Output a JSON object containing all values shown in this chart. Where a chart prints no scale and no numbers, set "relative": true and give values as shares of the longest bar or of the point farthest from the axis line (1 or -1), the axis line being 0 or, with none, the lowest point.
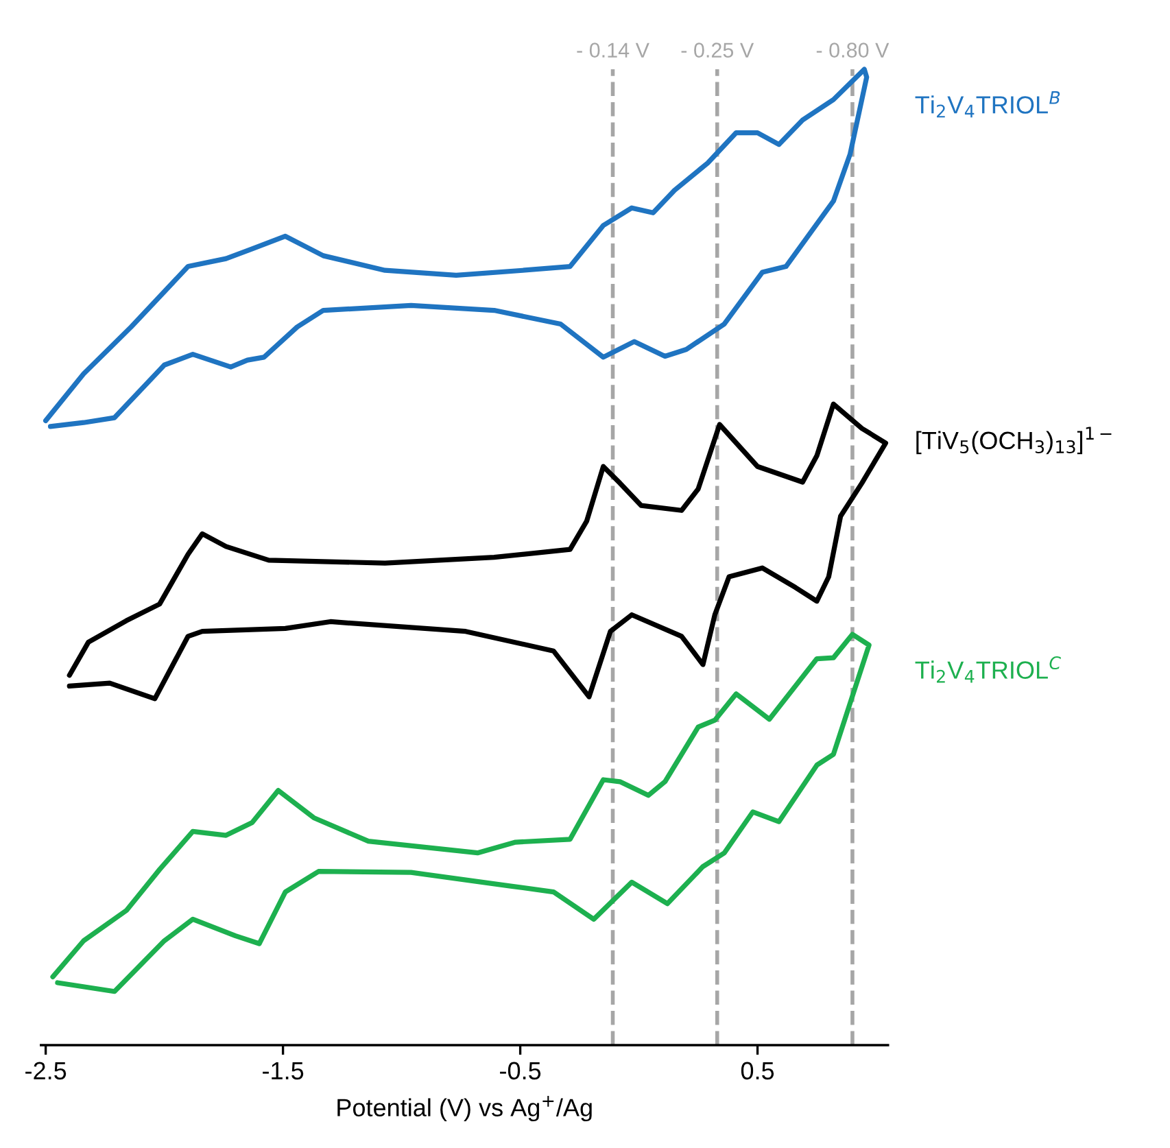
{
  "chart_data": {
    "type": "line",
    "relative": true,
    "xlabel": "Potential (V) vs Ag$^{+}$/Ag",
    "xlim": [
      -2.52,
      1.05
    ],
    "xticks": [
      -2.5,
      -1.5,
      -0.5,
      0.5
    ],
    "grid": false,
    "legend": false,
    "marker": "none",
    "line_style": "solid",
    "series": [
      {
        "name": "Ti$_{2}$V$_{4}$TRIOL$^{B}$",
        "color": "#1f74c1",
        "x": [
          -2.5,
          -2.34,
          -2.14,
          -1.9,
          -1.74,
          -1.63,
          -1.49,
          -1.33,
          -1.07,
          -0.77,
          -0.49,
          -0.29,
          -0.15,
          -0.03,
          0.06,
          0.15,
          0.29,
          0.41,
          0.5,
          0.59,
          0.69,
          0.82,
          0.95,
          0.96,
          0.89,
          0.82,
          0.62,
          0.52,
          0.36,
          0.2,
          0.11,
          -0.02,
          -0.15,
          -0.33,
          -0.61,
          -0.96,
          -1.33,
          -1.44,
          -1.58,
          -1.65,
          -1.72,
          -1.88,
          -2.0,
          -2.21,
          -2.34,
          -2.48
        ],
        "values": [
          0.64,
          0.688,
          0.736,
          0.798,
          0.806,
          0.816,
          0.829,
          0.809,
          0.794,
          0.789,
          0.794,
          0.798,
          0.84,
          0.858,
          0.853,
          0.876,
          0.904,
          0.935,
          0.935,
          0.923,
          0.948,
          0.969,
          1.0,
          0.992,
          0.913,
          0.865,
          0.798,
          0.792,
          0.739,
          0.713,
          0.706,
          0.721,
          0.705,
          0.739,
          0.753,
          0.758,
          0.753,
          0.736,
          0.705,
          0.702,
          0.695,
          0.708,
          0.697,
          0.643,
          0.638,
          0.634
        ]
      },
      {
        "name": "[TiV$_{5}$(OCH$_{3}$)$_{13}$]$^{1−}$",
        "color": "#000000",
        "x": [
          -2.4,
          -2.32,
          -2.16,
          -2.02,
          -1.9,
          -1.84,
          -1.74,
          -1.56,
          -1.07,
          -0.61,
          -0.29,
          -0.22,
          -0.15,
          -0.08,
          0.01,
          0.18,
          0.25,
          0.34,
          0.5,
          0.69,
          0.75,
          0.82,
          0.94,
          1.04,
          0.94,
          0.85,
          0.8,
          0.75,
          0.66,
          0.52,
          0.38,
          0.32,
          0.27,
          0.18,
          -0.03,
          -0.12,
          -0.21,
          -0.36,
          -0.73,
          -1.3,
          -1.49,
          -1.84,
          -1.9,
          -2.04,
          -2.23,
          -2.4
        ],
        "values": [
          0.379,
          0.413,
          0.435,
          0.452,
          0.503,
          0.524,
          0.511,
          0.497,
          0.494,
          0.5,
          0.508,
          0.537,
          0.593,
          0.576,
          0.553,
          0.548,
          0.57,
          0.636,
          0.593,
          0.577,
          0.604,
          0.657,
          0.632,
          0.617,
          0.576,
          0.542,
          0.48,
          0.455,
          0.469,
          0.489,
          0.48,
          0.441,
          0.39,
          0.419,
          0.441,
          0.424,
          0.357,
          0.404,
          0.424,
          0.434,
          0.427,
          0.424,
          0.419,
          0.355,
          0.371,
          0.368
        ]
      },
      {
        "name": "Ti$_{2}$V$_{4}$TRIOL$^{C}$",
        "color": "#1db04f",
        "x": [
          -2.47,
          -2.34,
          -2.16,
          -2.02,
          -1.88,
          -1.74,
          -1.63,
          -1.52,
          -1.37,
          -1.14,
          -0.68,
          -0.52,
          -0.29,
          -0.15,
          -0.08,
          0.04,
          0.11,
          0.25,
          0.32,
          0.41,
          0.55,
          0.75,
          0.82,
          0.9,
          0.97,
          0.82,
          0.75,
          0.59,
          0.48,
          0.36,
          0.27,
          0.12,
          -0.03,
          -0.19,
          -0.36,
          -0.54,
          -0.96,
          -1.35,
          -1.49,
          -1.6,
          -1.7,
          -1.88,
          -2.0,
          -2.21,
          -2.45
        ],
        "values": [
          0.07,
          0.107,
          0.138,
          0.18,
          0.219,
          0.215,
          0.228,
          0.261,
          0.233,
          0.209,
          0.197,
          0.208,
          0.211,
          0.272,
          0.27,
          0.256,
          0.27,
          0.326,
          0.333,
          0.36,
          0.334,
          0.396,
          0.397,
          0.421,
          0.41,
          0.298,
          0.287,
          0.229,
          0.239,
          0.197,
          0.183,
          0.145,
          0.167,
          0.129,
          0.157,
          0.163,
          0.177,
          0.178,
          0.157,
          0.104,
          0.112,
          0.129,
          0.107,
          0.055,
          0.064
        ]
      }
    ],
    "ref_lines": [
      {
        "axis": "x",
        "value": -0.11,
        "label": "- 0.14 V",
        "color": "#a6a6a6",
        "line_style": "dashed"
      },
      {
        "axis": "x",
        "value": 0.33,
        "label": "- 0.25 V",
        "color": "#a6a6a6",
        "line_style": "dashed"
      },
      {
        "axis": "x",
        "value": 0.9,
        "label": "- 0.80 V",
        "color": "#a6a6a6",
        "line_style": "dashed"
      }
    ]
  }
}
